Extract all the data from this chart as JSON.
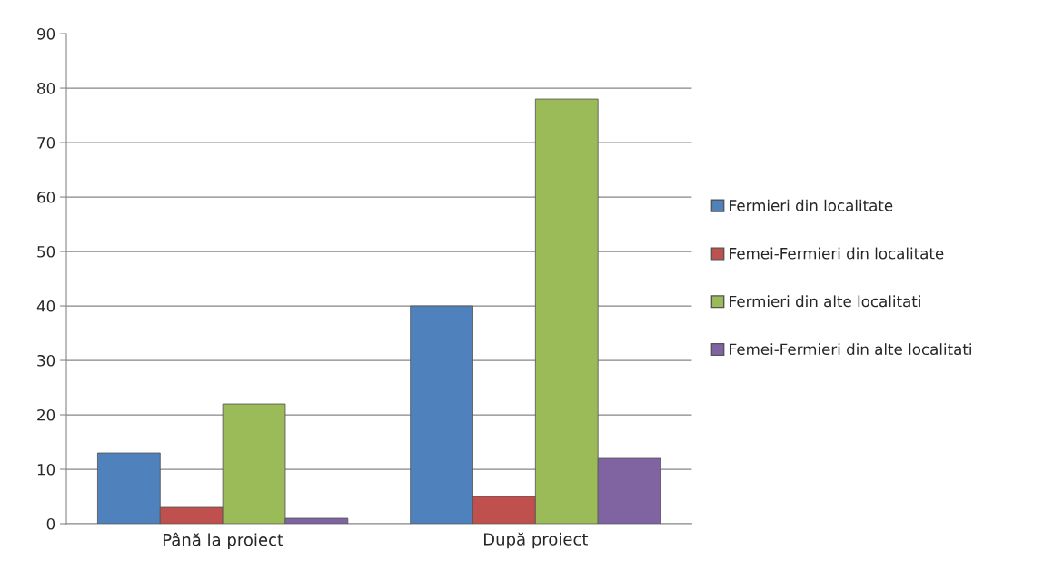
{
  "chart_data": {
    "type": "bar",
    "categories": [
      "Până la proiect",
      "După proiect"
    ],
    "series": [
      {
        "name": "Fermieri din localitate",
        "color": "#4f81bd",
        "values": [
          13,
          40
        ]
      },
      {
        "name": "Femei-Fermieri din localitate",
        "color": "#c0504d",
        "values": [
          3,
          5
        ]
      },
      {
        "name": "Fermieri din alte localitati",
        "color": "#9bbb59",
        "values": [
          22,
          78
        ]
      },
      {
        "name": "Femei-Fermieri din alte localitati",
        "color": "#8064a2",
        "values": [
          1,
          12
        ]
      }
    ],
    "ylim": [
      0,
      90
    ],
    "yticks": [
      0,
      10,
      20,
      30,
      40,
      50,
      60,
      70,
      80,
      90
    ],
    "grid": "y",
    "legend": "right"
  }
}
